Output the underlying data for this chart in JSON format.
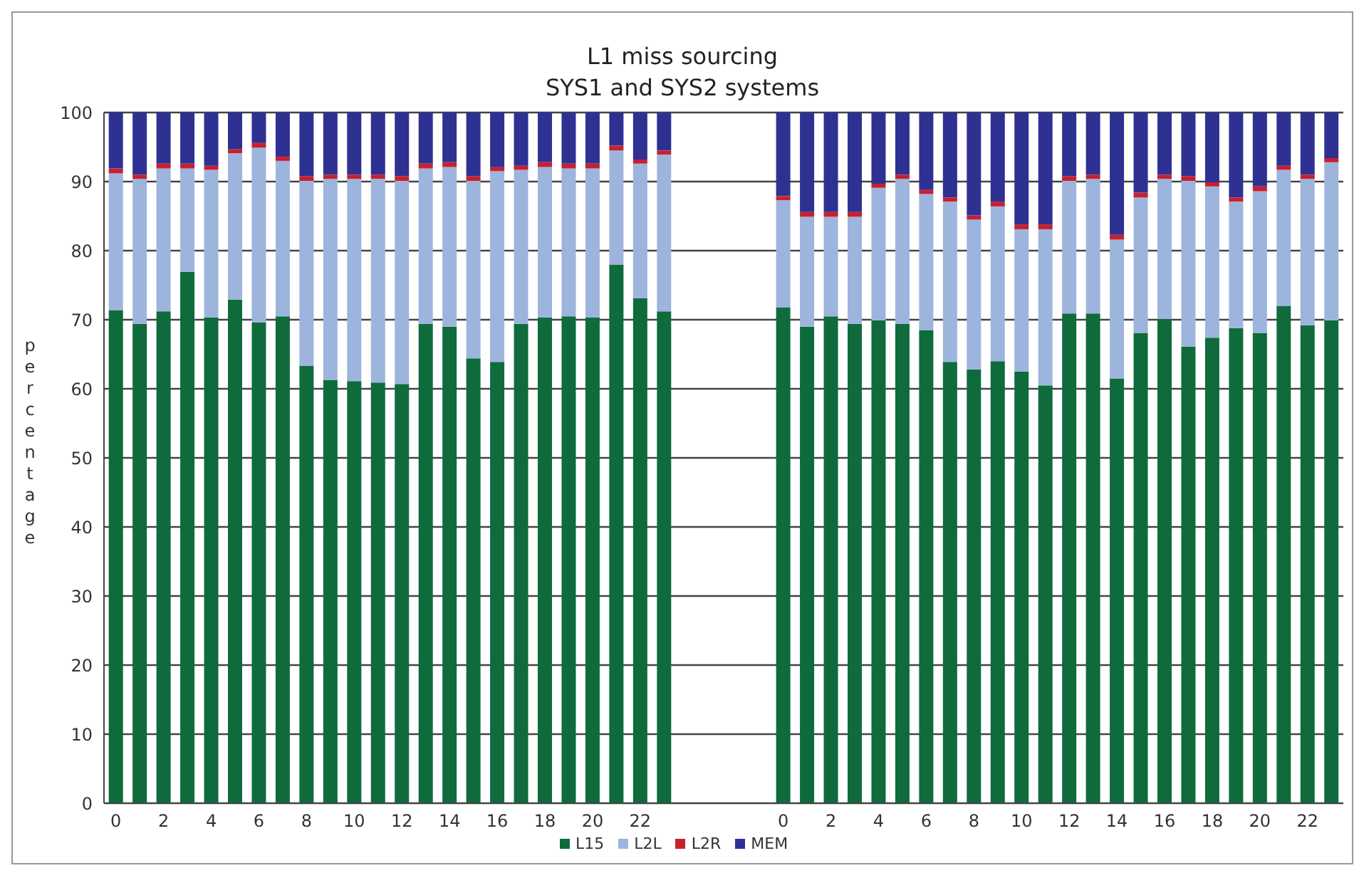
{
  "chart_data": {
    "type": "bar",
    "title": "L1 miss sourcing",
    "subtitle": "SYS1 and SYS2 systems",
    "ylabel": "percentage",
    "categories": [
      "0",
      null,
      "2",
      null,
      "4",
      null,
      "6",
      null,
      "8",
      null,
      "10",
      null,
      "12",
      null,
      "14",
      null,
      "16",
      null,
      "18",
      null,
      "20",
      null,
      "22",
      null,
      null,
      null,
      null,
      null,
      "0",
      null,
      "2",
      null,
      "4",
      null,
      "6",
      null,
      "8",
      null,
      "10",
      null,
      "12",
      null,
      "14",
      null,
      "16",
      null,
      "18",
      null,
      "20",
      null,
      "22",
      null
    ],
    "stacked": true,
    "ylim": [
      0,
      100
    ],
    "yticks": [
      0,
      10,
      20,
      30,
      40,
      50,
      60,
      70,
      80,
      90,
      100
    ],
    "grid": "y",
    "legend": "bottom",
    "series": [
      {
        "name": "L15",
        "color": "#0f6b3c",
        "values": [
          71.4,
          69.4,
          71.2,
          76.9,
          70.3,
          72.9,
          69.6,
          70.5,
          63.3,
          61.3,
          61.1,
          60.9,
          60.7,
          69.4,
          69.0,
          64.4,
          63.9,
          69.4,
          70.3,
          70.5,
          70.3,
          78.0,
          73.1,
          71.2,
          null,
          null,
          null,
          null,
          71.8,
          69.0,
          70.5,
          69.4,
          69.9,
          69.4,
          68.5,
          63.9,
          62.8,
          64.0,
          62.5,
          60.5,
          70.9,
          70.9,
          61.5,
          68.1,
          70.1,
          66.1,
          67.4,
          68.8,
          68.1,
          72.0,
          69.2,
          69.9
        ]
      },
      {
        "name": "L2L",
        "color": "#9db5dd",
        "values": [
          19.8,
          21.0,
          20.7,
          15.0,
          21.4,
          21.2,
          25.3,
          22.5,
          26.8,
          29.1,
          29.3,
          29.5,
          29.4,
          22.5,
          23.1,
          25.7,
          27.6,
          22.3,
          21.8,
          21.4,
          21.6,
          16.5,
          19.5,
          22.7,
          null,
          null,
          null,
          null,
          15.5,
          15.9,
          14.4,
          15.5,
          19.2,
          21.0,
          19.7,
          23.2,
          21.7,
          22.4,
          20.6,
          22.6,
          19.2,
          19.5,
          20.1,
          19.6,
          20.3,
          24.0,
          21.9,
          18.3,
          20.5,
          19.7,
          21.2,
          22.9
        ]
      },
      {
        "name": "L2R",
        "color": "#c8202f",
        "values": [
          0.7,
          0.6,
          0.7,
          0.7,
          0.6,
          0.6,
          0.7,
          0.6,
          0.7,
          0.6,
          0.6,
          0.6,
          0.7,
          0.7,
          0.7,
          0.7,
          0.6,
          0.6,
          0.7,
          0.7,
          0.7,
          0.7,
          0.6,
          0.6,
          null,
          null,
          null,
          null,
          0.6,
          0.7,
          0.7,
          0.7,
          0.6,
          0.6,
          0.6,
          0.6,
          0.6,
          0.7,
          0.7,
          0.7,
          0.7,
          0.6,
          0.7,
          0.7,
          0.6,
          0.7,
          0.6,
          0.6,
          0.7,
          0.6,
          0.6,
          0.6
        ]
      },
      {
        "name": "MEM",
        "color": "#2e3192",
        "values": [
          8.1,
          9.0,
          7.4,
          7.4,
          7.7,
          5.3,
          4.4,
          6.4,
          9.2,
          9.0,
          9.0,
          9.0,
          9.2,
          7.4,
          7.2,
          9.2,
          7.9,
          7.7,
          7.2,
          7.4,
          7.4,
          4.8,
          6.8,
          5.5,
          null,
          null,
          null,
          null,
          12.1,
          14.4,
          14.4,
          14.4,
          10.3,
          9.0,
          11.2,
          12.3,
          14.9,
          12.9,
          16.2,
          16.2,
          9.2,
          9.0,
          17.7,
          11.6,
          9.0,
          9.2,
          10.1,
          12.3,
          10.7,
          7.7,
          9.0,
          6.6
        ]
      }
    ]
  }
}
